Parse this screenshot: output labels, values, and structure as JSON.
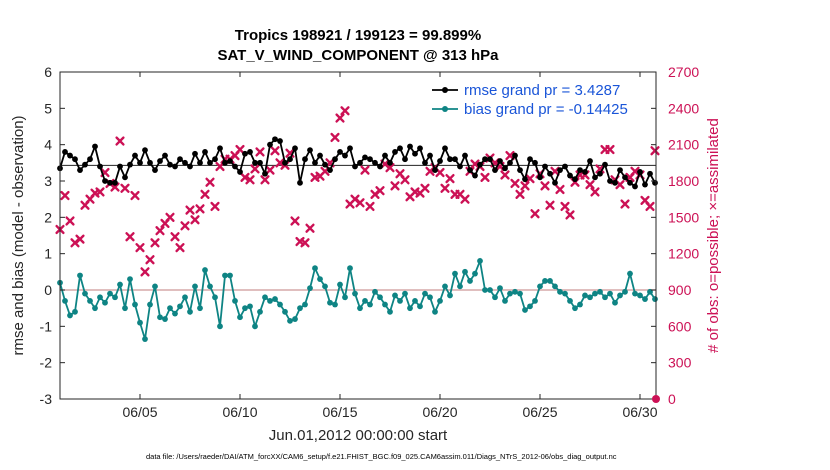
{
  "chart_data": {
    "type": "line",
    "title": "Tropics 198921 / 199123 = 99.899%",
    "subtitle": "SAT_V_WIND_COMPONENT @ 313 hPa",
    "xlabel": "Jun.01,2012 00:00:00 start",
    "ylabel": "rmse and bias (model - observation)",
    "y2label": "# of obs: o=possible; ×=assimilated",
    "x_range": [
      1,
      30.8
    ],
    "x_ticks": [
      5,
      10,
      15,
      20,
      25,
      30
    ],
    "x_tick_labels": [
      "06/05",
      "06/10",
      "06/15",
      "06/20",
      "06/25",
      "06/30"
    ],
    "ylim": [
      -3,
      6
    ],
    "y_ticks": [
      "-3",
      "-2",
      "-1",
      "0",
      "1",
      "2",
      "3",
      "4",
      "5",
      "6"
    ],
    "y2lim": [
      0,
      2700
    ],
    "y2_ticks": [
      "0",
      "300",
      "600",
      "900",
      "1200",
      "1500",
      "1800",
      "2100",
      "2400",
      "2700"
    ],
    "legend_position": "top-right",
    "reference_lines": [
      0,
      3.4287
    ],
    "series": [
      {
        "name": "rmse grand pr = 3.4287",
        "color": "#000000",
        "axis": "left",
        "x": [
          1.0,
          1.25,
          1.5,
          1.75,
          2.0,
          2.25,
          2.5,
          2.75,
          3.0,
          3.25,
          3.5,
          3.75,
          4.0,
          4.25,
          4.5,
          4.75,
          5.0,
          5.25,
          5.5,
          5.75,
          6.0,
          6.25,
          6.5,
          6.75,
          7.0,
          7.25,
          7.5,
          7.75,
          8.0,
          8.25,
          8.5,
          8.75,
          9.0,
          9.25,
          9.5,
          9.75,
          10.0,
          10.25,
          10.5,
          10.75,
          11.0,
          11.25,
          11.5,
          11.75,
          12.0,
          12.25,
          12.5,
          12.75,
          13.0,
          13.25,
          13.5,
          13.75,
          14.0,
          14.25,
          14.5,
          14.75,
          15.0,
          15.25,
          15.5,
          15.75,
          16.0,
          16.25,
          16.5,
          16.75,
          17.0,
          17.25,
          17.5,
          17.75,
          18.0,
          18.25,
          18.5,
          18.75,
          19.0,
          19.25,
          19.5,
          19.75,
          20.0,
          20.25,
          20.5,
          20.75,
          21.0,
          21.25,
          21.5,
          21.75,
          22.0,
          22.25,
          22.5,
          22.75,
          23.0,
          23.25,
          23.5,
          23.75,
          24.0,
          24.25,
          24.5,
          24.75,
          25.0,
          25.25,
          25.5,
          25.75,
          26.0,
          26.25,
          26.5,
          26.75,
          27.0,
          27.25,
          27.5,
          27.75,
          28.0,
          28.25,
          28.5,
          28.75,
          29.0,
          29.25,
          29.5,
          29.75,
          30.0,
          30.25,
          30.5,
          30.75
        ],
        "values": [
          3.35,
          3.8,
          3.7,
          3.6,
          3.3,
          3.45,
          3.6,
          3.95,
          3.4,
          3.0,
          2.95,
          2.95,
          3.4,
          3.1,
          3.45,
          3.7,
          3.5,
          3.85,
          3.5,
          3.3,
          3.55,
          3.7,
          3.45,
          3.4,
          3.6,
          3.5,
          3.4,
          3.75,
          3.5,
          3.8,
          3.5,
          3.6,
          3.9,
          3.5,
          3.55,
          3.4,
          3.25,
          3.75,
          3.8,
          3.5,
          3.5,
          3.2,
          4.0,
          4.15,
          4.1,
          3.5,
          3.6,
          3.9,
          2.95,
          3.6,
          3.85,
          3.5,
          3.7,
          3.45,
          3.3,
          3.6,
          3.8,
          3.7,
          3.9,
          3.4,
          3.5,
          3.65,
          3.6,
          3.5,
          3.4,
          3.7,
          3.5,
          3.8,
          3.9,
          3.6,
          3.95,
          3.75,
          3.9,
          3.5,
          3.7,
          3.3,
          3.55,
          3.9,
          3.6,
          3.6,
          3.4,
          3.7,
          3.3,
          3.15,
          3.45,
          3.6,
          3.6,
          3.3,
          3.55,
          3.35,
          3.5,
          3.7,
          3.3,
          3.05,
          3.6,
          3.5,
          3.1,
          3.4,
          3.2,
          2.95,
          3.3,
          3.4,
          3.15,
          3.05,
          3.3,
          3.25,
          3.55,
          3.1,
          3.2,
          3.45,
          3.0,
          2.95,
          3.3,
          3.1,
          2.95,
          2.85,
          3.25,
          2.9,
          3.2,
          2.95
        ],
        "markers": "filled-circle"
      },
      {
        "name": "bias grand pr = -0.14425",
        "color": "#0e8484",
        "axis": "left",
        "x": [
          1.0,
          1.25,
          1.5,
          1.75,
          2.0,
          2.25,
          2.5,
          2.75,
          3.0,
          3.25,
          3.5,
          3.75,
          4.0,
          4.25,
          4.5,
          4.75,
          5.0,
          5.25,
          5.5,
          5.75,
          6.0,
          6.25,
          6.5,
          6.75,
          7.0,
          7.25,
          7.5,
          7.75,
          8.0,
          8.25,
          8.5,
          8.75,
          9.0,
          9.25,
          9.5,
          9.75,
          10.0,
          10.25,
          10.5,
          10.75,
          11.0,
          11.25,
          11.5,
          11.75,
          12.0,
          12.25,
          12.5,
          12.75,
          13.0,
          13.25,
          13.5,
          13.75,
          14.0,
          14.25,
          14.5,
          14.75,
          15.0,
          15.25,
          15.5,
          15.75,
          16.0,
          16.25,
          16.5,
          16.75,
          17.0,
          17.25,
          17.5,
          17.75,
          18.0,
          18.25,
          18.5,
          18.75,
          19.0,
          19.25,
          19.5,
          19.75,
          20.0,
          20.25,
          20.5,
          20.75,
          21.0,
          21.25,
          21.5,
          21.75,
          22.0,
          22.25,
          22.5,
          22.75,
          23.0,
          23.25,
          23.5,
          23.75,
          24.0,
          24.25,
          24.5,
          24.75,
          25.0,
          25.25,
          25.5,
          25.75,
          26.0,
          26.25,
          26.5,
          26.75,
          27.0,
          27.25,
          27.5,
          27.75,
          28.0,
          28.25,
          28.5,
          28.75,
          29.0,
          29.25,
          29.5,
          29.75,
          30.0,
          30.25,
          30.5,
          30.75
        ],
        "values": [
          0.2,
          -0.3,
          -0.7,
          -0.6,
          0.4,
          -0.1,
          -0.3,
          -0.5,
          -0.2,
          -0.35,
          -0.1,
          -0.2,
          0.15,
          -0.5,
          0.3,
          -0.4,
          -0.9,
          -1.35,
          -0.4,
          0.1,
          -0.75,
          -0.8,
          -0.5,
          -0.65,
          -0.45,
          -0.2,
          -0.6,
          0.1,
          -0.5,
          0.55,
          0.1,
          -0.2,
          -1.0,
          0.4,
          0.4,
          -0.3,
          -0.75,
          -0.5,
          -0.45,
          -1.0,
          -0.6,
          -0.2,
          -0.3,
          -0.25,
          -0.4,
          -0.6,
          -0.85,
          -0.8,
          -0.5,
          -0.4,
          0.05,
          0.6,
          0.3,
          0.1,
          -0.35,
          -0.4,
          0.15,
          -0.2,
          0.6,
          -0.1,
          -0.5,
          -0.3,
          -0.4,
          -0.05,
          -0.2,
          -0.4,
          -0.6,
          -0.15,
          -0.3,
          -0.1,
          -0.5,
          -0.3,
          -0.45,
          -0.1,
          -0.2,
          -0.6,
          -0.3,
          0.1,
          -0.15,
          0.45,
          0.1,
          0.5,
          0.25,
          0.45,
          0.8,
          0.0,
          0.0,
          -0.2,
          0.05,
          -0.3,
          -0.1,
          -0.05,
          -0.1,
          -0.55,
          -0.45,
          -0.3,
          0.1,
          0.25,
          0.25,
          0.1,
          -0.05,
          -0.1,
          -0.3,
          -0.5,
          -0.4,
          -0.15,
          -0.2,
          -0.1,
          -0.05,
          -0.2,
          -0.1,
          -0.35,
          -0.15,
          -0.05,
          0.45,
          -0.1,
          -0.15,
          -0.25,
          -0.05,
          -0.25
        ],
        "markers": "filled-circle"
      },
      {
        "name": "obs assimilated",
        "color": "#cc1155",
        "axis": "right",
        "x": [
          1.0,
          1.25,
          1.5,
          1.75,
          2.0,
          2.25,
          2.5,
          2.75,
          3.0,
          3.25,
          3.5,
          3.75,
          4.0,
          4.25,
          4.5,
          4.75,
          5.0,
          5.25,
          5.5,
          5.75,
          6.0,
          6.25,
          6.5,
          6.75,
          7.0,
          7.25,
          7.5,
          7.75,
          8.0,
          8.25,
          8.5,
          8.75,
          9.0,
          9.25,
          9.5,
          9.75,
          10.0,
          10.25,
          10.5,
          10.75,
          11.0,
          11.25,
          11.5,
          11.75,
          12.0,
          12.25,
          12.5,
          12.75,
          13.0,
          13.25,
          13.5,
          13.75,
          14.0,
          14.25,
          14.5,
          14.75,
          15.0,
          15.25,
          15.5,
          15.75,
          16.0,
          16.25,
          16.5,
          16.75,
          17.0,
          17.25,
          17.5,
          17.75,
          18.0,
          18.25,
          18.5,
          18.75,
          19.0,
          19.25,
          19.5,
          19.75,
          20.0,
          20.25,
          20.5,
          20.75,
          21.0,
          21.25,
          21.5,
          21.75,
          22.0,
          22.25,
          22.5,
          22.75,
          23.0,
          23.25,
          23.5,
          23.75,
          24.0,
          24.25,
          24.5,
          24.75,
          25.0,
          25.25,
          25.5,
          25.75,
          26.0,
          26.25,
          26.5,
          26.75,
          27.0,
          27.25,
          27.5,
          27.75,
          28.0,
          28.25,
          28.5,
          28.75,
          29.0,
          29.25,
          29.5,
          29.75,
          30.0,
          30.25,
          30.5,
          30.75
        ],
        "values": [
          1400,
          1680,
          1470,
          1290,
          1320,
          1600,
          1650,
          1700,
          1710,
          1870,
          1780,
          1750,
          2130,
          1740,
          1340,
          1680,
          1250,
          1050,
          1150,
          1290,
          1390,
          1450,
          1500,
          1340,
          1250,
          1430,
          1560,
          1480,
          1570,
          1690,
          1790,
          1590,
          1920,
          1980,
          1980,
          2010,
          2060,
          1830,
          1810,
          1900,
          2040,
          1810,
          1890,
          2050,
          1950,
          1930,
          2030,
          1470,
          1300,
          1290,
          1410,
          1830,
          1840,
          1880,
          1950,
          2160,
          2320,
          2380,
          1610,
          1650,
          1620,
          1890,
          1590,
          1690,
          1720,
          1940,
          1910,
          1760,
          1860,
          1810,
          1670,
          1710,
          1700,
          1740,
          1880,
          1910,
          1870,
          1740,
          1820,
          1690,
          1690,
          1650,
          1880,
          1940,
          1920,
          1830,
          1990,
          1950,
          1920,
          1850,
          2010,
          1780,
          1690,
          1760,
          1820,
          1530,
          1860,
          1760,
          1600,
          1880,
          1730,
          1590,
          1520,
          1790,
          1850,
          1850,
          1770,
          1710,
          1900,
          2060,
          2060,
          1810,
          1770,
          1610,
          1830,
          1880,
          1850,
          1640,
          1590,
          2050
        ],
        "markers": "x"
      }
    ]
  },
  "footer_text": "data file: /Users/raeder/DAI/ATM_forcXX/CAM6_setup/f.e21.FHIST_BGC.f09_025.CAM6assim.011/Diags_NTrS_2012-06/obs_diag_output.nc"
}
